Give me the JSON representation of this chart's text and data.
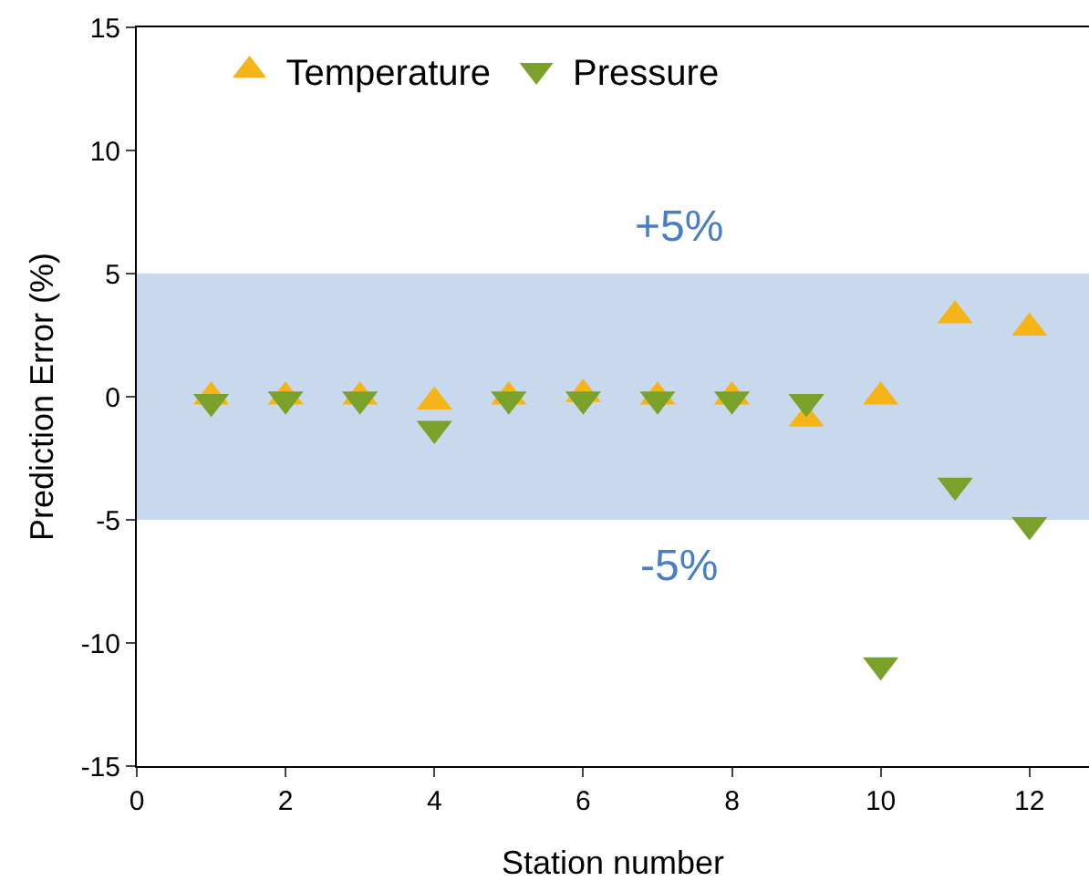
{
  "chart_data": {
    "type": "scatter",
    "xlabel": "Station number",
    "ylabel": "Prediction Error (%)",
    "x": [
      1,
      2,
      3,
      4,
      5,
      6,
      7,
      8,
      9,
      10,
      11,
      12
    ],
    "series": [
      {
        "name": "Temperature",
        "color": "#f5b519",
        "marker": "triangle",
        "values": [
          0,
          0,
          0,
          -0.2,
          0,
          0.1,
          0,
          0,
          -0.9,
          0,
          3.3,
          2.8
        ]
      },
      {
        "name": "Pressure",
        "color": "#7aa22a",
        "marker": "triangle-down",
        "values": [
          -0.2,
          -0.1,
          -0.1,
          -1.3,
          -0.1,
          -0.1,
          -0.1,
          -0.1,
          -0.2,
          -10.9,
          -3.6,
          -5.2
        ]
      }
    ],
    "xlim": [
      0,
      12.8
    ],
    "xticks": [
      0,
      2,
      4,
      6,
      8,
      10,
      12
    ],
    "ylim": [
      -15,
      15
    ],
    "yticks": [
      -15,
      -10,
      -5,
      0,
      5,
      10,
      15
    ],
    "bands": [
      {
        "axis": "y",
        "from": -5,
        "to": 5,
        "color": "#c9d9ed"
      }
    ],
    "annotations": [
      "+5%",
      "-5%"
    ],
    "grid": false,
    "legend": "top"
  }
}
